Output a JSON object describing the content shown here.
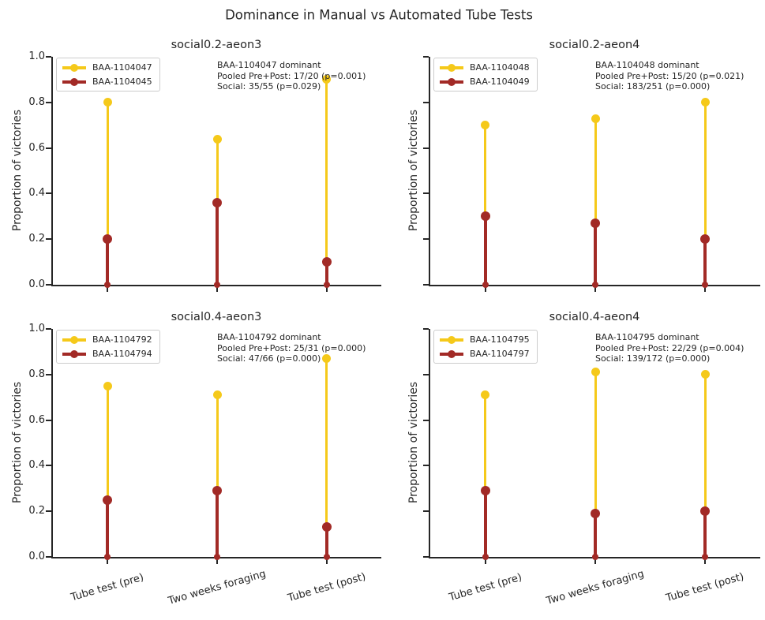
{
  "suptitle": "Dominance in Manual vs Automated Tube Tests",
  "colors": {
    "series1": "#F5C91A",
    "series2": "#A22A26",
    "spine": "#262626",
    "text": "#262626",
    "legend_border": "#cccccc"
  },
  "axes": {
    "ylabel": "Proportion of victories",
    "ylim": [
      0.0,
      1.0
    ],
    "yticks": [
      "0.0",
      "0.2",
      "0.4",
      "0.6",
      "0.8",
      "1.0"
    ],
    "xticklabels": [
      "Tube test (pre)",
      "Two weeks foraging",
      "Tube test (post)"
    ]
  },
  "chart_data": [
    {
      "type": "stem",
      "title": "social0.2-aeon3",
      "categories": [
        "Tube test (pre)",
        "Two weeks foraging",
        "Tube test (post)"
      ],
      "series": [
        {
          "name": "BAA-1104047",
          "color": "#F5C91A",
          "values": [
            0.8,
            0.64,
            0.9
          ]
        },
        {
          "name": "BAA-1104045",
          "color": "#A22A26",
          "values": [
            0.2,
            0.36,
            0.1
          ]
        }
      ],
      "annotation": [
        "BAA-1104047 dominant",
        "Pooled Pre+Post: 17/20 (p=0.001)",
        "Social: 35/55 (p=0.029)"
      ],
      "show_y_tick_labels": true,
      "show_x_tick_labels": false
    },
    {
      "type": "stem",
      "title": "social0.2-aeon4",
      "categories": [
        "Tube test (pre)",
        "Two weeks foraging",
        "Tube test (post)"
      ],
      "series": [
        {
          "name": "BAA-1104048",
          "color": "#F5C91A",
          "values": [
            0.7,
            0.73,
            0.8
          ]
        },
        {
          "name": "BAA-1104049",
          "color": "#A22A26",
          "values": [
            0.3,
            0.27,
            0.2
          ]
        }
      ],
      "annotation": [
        "BAA-1104048 dominant",
        "Pooled Pre+Post: 15/20 (p=0.021)",
        "Social: 183/251 (p=0.000)"
      ],
      "show_y_tick_labels": false,
      "show_x_tick_labels": false
    },
    {
      "type": "stem",
      "title": "social0.4-aeon3",
      "categories": [
        "Tube test (pre)",
        "Two weeks foraging",
        "Tube test (post)"
      ],
      "series": [
        {
          "name": "BAA-1104792",
          "color": "#F5C91A",
          "values": [
            0.75,
            0.71,
            0.87
          ]
        },
        {
          "name": "BAA-1104794",
          "color": "#A22A26",
          "values": [
            0.25,
            0.29,
            0.13
          ]
        }
      ],
      "annotation": [
        "BAA-1104792 dominant",
        "Pooled Pre+Post: 25/31 (p=0.000)",
        "Social: 47/66 (p=0.000)"
      ],
      "show_y_tick_labels": true,
      "show_x_tick_labels": true
    },
    {
      "type": "stem",
      "title": "social0.4-aeon4",
      "categories": [
        "Tube test (pre)",
        "Two weeks foraging",
        "Tube test (post)"
      ],
      "series": [
        {
          "name": "BAA-1104795",
          "color": "#F5C91A",
          "values": [
            0.71,
            0.81,
            0.8
          ]
        },
        {
          "name": "BAA-1104797",
          "color": "#A22A26",
          "values": [
            0.29,
            0.19,
            0.2
          ]
        }
      ],
      "annotation": [
        "BAA-1104795 dominant",
        "Pooled Pre+Post: 22/29 (p=0.004)",
        "Social: 139/172 (p=0.000)"
      ],
      "show_y_tick_labels": false,
      "show_x_tick_labels": true
    }
  ]
}
